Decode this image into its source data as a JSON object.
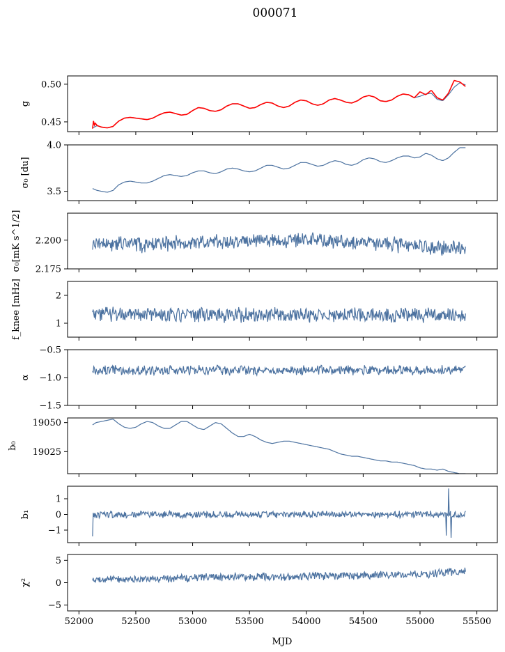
{
  "figure_title": "000071",
  "xlabel": "MJD",
  "x_ticks": [
    "52000",
    "52500",
    "53000",
    "53500",
    "54000",
    "54500",
    "55000",
    "55500"
  ],
  "colors": {
    "series": "#4c72a0",
    "highlight": "#ff0000"
  },
  "chart_data": [
    {
      "type": "line",
      "ylabel": "g",
      "xlim": [
        51900,
        55680
      ],
      "ylim": [
        0.437,
        0.511
      ],
      "yticks": [
        "0.50",
        "0.45"
      ],
      "series": [
        {
          "x": [
            52120,
            52160,
            52200,
            52250,
            52300,
            52350,
            52400,
            52450,
            52500,
            52550,
            52600,
            52650,
            52700,
            52750,
            52800,
            52850,
            52900,
            52950,
            53000,
            53050,
            53100,
            53150,
            53200,
            53250,
            53300,
            53350,
            53400,
            53450,
            53500,
            53550,
            53600,
            53650,
            53700,
            53750,
            53800,
            53850,
            53900,
            53950,
            54000,
            54050,
            54100,
            54150,
            54200,
            54250,
            54300,
            54350,
            54400,
            54450,
            54500,
            54550,
            54600,
            54650,
            54700,
            54750,
            54800,
            54850,
            54900,
            54950,
            55000,
            55050,
            55100,
            55150,
            55200,
            55250,
            55300,
            55350,
            55400
          ],
          "values": [
            0.442,
            0.445,
            0.443,
            0.442,
            0.444,
            0.451,
            0.455,
            0.456,
            0.455,
            0.454,
            0.453,
            0.455,
            0.459,
            0.462,
            0.463,
            0.461,
            0.459,
            0.46,
            0.465,
            0.469,
            0.468,
            0.465,
            0.464,
            0.466,
            0.471,
            0.474,
            0.474,
            0.471,
            0.468,
            0.469,
            0.473,
            0.476,
            0.475,
            0.471,
            0.469,
            0.471,
            0.476,
            0.479,
            0.478,
            0.474,
            0.472,
            0.474,
            0.479,
            0.481,
            0.479,
            0.476,
            0.475,
            0.478,
            0.483,
            0.485,
            0.483,
            0.478,
            0.477,
            0.479,
            0.484,
            0.487,
            0.486,
            0.482,
            0.484,
            0.487,
            0.488,
            0.48,
            0.478,
            0.486,
            0.496,
            0.502,
            0.499
          ]
        },
        {
          "x": [
            52120,
            52125,
            52130,
            52140,
            52160,
            52200,
            52250,
            52300,
            52350,
            52400,
            52450,
            52500,
            52550,
            52600,
            52650,
            52700,
            52750,
            52800,
            52850,
            52900,
            52950,
            53000,
            53050,
            53100,
            53150,
            53200,
            53250,
            53300,
            53350,
            53400,
            53450,
            53500,
            53550,
            53600,
            53650,
            53700,
            53750,
            53800,
            53850,
            53900,
            53950,
            54000,
            54050,
            54100,
            54150,
            54200,
            54250,
            54300,
            54350,
            54400,
            54450,
            54500,
            54550,
            54600,
            54650,
            54700,
            54750,
            54800,
            54850,
            54900,
            54950,
            55000,
            55050,
            55100,
            55150,
            55200,
            55250,
            55300,
            55350,
            55400
          ],
          "values": [
            0.441,
            0.471,
            0.44,
            0.449,
            0.445,
            0.443,
            0.442,
            0.444,
            0.451,
            0.455,
            0.456,
            0.455,
            0.454,
            0.453,
            0.455,
            0.459,
            0.462,
            0.463,
            0.461,
            0.459,
            0.46,
            0.465,
            0.469,
            0.468,
            0.465,
            0.464,
            0.466,
            0.471,
            0.474,
            0.474,
            0.471,
            0.468,
            0.469,
            0.473,
            0.476,
            0.475,
            0.471,
            0.469,
            0.471,
            0.476,
            0.479,
            0.478,
            0.474,
            0.472,
            0.474,
            0.479,
            0.481,
            0.479,
            0.476,
            0.475,
            0.478,
            0.483,
            0.485,
            0.483,
            0.478,
            0.477,
            0.479,
            0.484,
            0.487,
            0.486,
            0.482,
            0.49,
            0.486,
            0.492,
            0.482,
            0.479,
            0.488,
            0.505,
            0.503,
            0.497
          ]
        }
      ]
    },
    {
      "type": "line",
      "ylabel": "σ₀ [du]",
      "xlim": [
        51900,
        55680
      ],
      "ylim": [
        3.4,
        4.0
      ],
      "yticks": [
        "4.0",
        "3.5"
      ],
      "series": [
        {
          "x": [
            52120,
            52160,
            52200,
            52250,
            52300,
            52350,
            52400,
            52450,
            52500,
            52550,
            52600,
            52650,
            52700,
            52750,
            52800,
            52850,
            52900,
            52950,
            53000,
            53050,
            53100,
            53150,
            53200,
            53250,
            53300,
            53350,
            53400,
            53450,
            53500,
            53550,
            53600,
            53650,
            53700,
            53750,
            53800,
            53850,
            53900,
            53950,
            54000,
            54050,
            54100,
            54150,
            54200,
            54250,
            54300,
            54350,
            54400,
            54450,
            54500,
            54550,
            54600,
            54650,
            54700,
            54750,
            54800,
            54850,
            54900,
            54950,
            55000,
            55050,
            55100,
            55150,
            55200,
            55250,
            55300,
            55350,
            55400
          ],
          "values": [
            3.53,
            3.51,
            3.5,
            3.49,
            3.51,
            3.57,
            3.6,
            3.61,
            3.6,
            3.59,
            3.59,
            3.61,
            3.64,
            3.67,
            3.68,
            3.67,
            3.66,
            3.67,
            3.7,
            3.72,
            3.72,
            3.7,
            3.69,
            3.71,
            3.74,
            3.75,
            3.74,
            3.72,
            3.71,
            3.72,
            3.75,
            3.78,
            3.78,
            3.76,
            3.74,
            3.75,
            3.78,
            3.81,
            3.81,
            3.79,
            3.77,
            3.78,
            3.81,
            3.83,
            3.82,
            3.79,
            3.78,
            3.8,
            3.84,
            3.86,
            3.85,
            3.82,
            3.81,
            3.83,
            3.86,
            3.88,
            3.88,
            3.86,
            3.87,
            3.91,
            3.89,
            3.85,
            3.83,
            3.86,
            3.92,
            3.97,
            3.97
          ]
        }
      ]
    },
    {
      "type": "line",
      "ylabel": "σ₀[mK s^1/2]",
      "xlim": [
        51900,
        55680
      ],
      "ylim": [
        2.175,
        2.2235
      ],
      "yticks": [
        "2.200",
        "2.175"
      ],
      "series": [
        {
          "x": [
            52120,
            52600,
            53100,
            53600,
            54100,
            54600,
            55100,
            55400
          ],
          "values": [
            2.197,
            2.196,
            2.198,
            2.199,
            2.2,
            2.198,
            2.194,
            2.193
          ]
        }
      ]
    },
    {
      "type": "line",
      "ylabel": "f_knee [mHz]",
      "xlim": [
        51900,
        55680
      ],
      "ylim": [
        0.5,
        2.5
      ],
      "yticks": [
        "2",
        "1"
      ],
      "series": [
        {
          "x": [
            52120,
            55400
          ],
          "values": [
            1.3,
            1.3
          ]
        }
      ]
    },
    {
      "type": "line",
      "ylabel": "α",
      "xlim": [
        51900,
        55680
      ],
      "ylim": [
        -1.5,
        -0.5
      ],
      "yticks": [
        "−0.5",
        "−1.0",
        "−1.5"
      ],
      "series": [
        {
          "x": [
            52120,
            55400
          ],
          "values": [
            -0.87,
            -0.87
          ]
        }
      ]
    },
    {
      "type": "line",
      "ylabel": "b₀",
      "xlim": [
        51900,
        55680
      ],
      "ylim": [
        19006,
        19054
      ],
      "yticks": [
        "19050",
        "19025"
      ],
      "series": [
        {
          "x": [
            52120,
            52150,
            52200,
            52250,
            52300,
            52350,
            52400,
            52450,
            52500,
            52550,
            52600,
            52650,
            52700,
            52750,
            52800,
            52850,
            52900,
            52950,
            53000,
            53050,
            53100,
            53150,
            53200,
            53250,
            53300,
            53350,
            53400,
            53450,
            53500,
            53550,
            53600,
            53650,
            53700,
            53750,
            53800,
            53850,
            53900,
            53950,
            54000,
            54050,
            54100,
            54150,
            54200,
            54250,
            54300,
            54350,
            54400,
            54450,
            54500,
            54550,
            54600,
            54650,
            54700,
            54750,
            54800,
            54850,
            54900,
            54950,
            55000,
            55050,
            55100,
            55150,
            55200,
            55250,
            55300,
            55350,
            55400
          ],
          "values": [
            19048,
            19050,
            19051,
            19052,
            19053,
            19049,
            19046,
            19045,
            19046,
            19049,
            19051,
            19050,
            19047,
            19045,
            19045,
            19048,
            19051,
            19051,
            19048,
            19045,
            19044,
            19047,
            19050,
            19049,
            19045,
            19041,
            19038,
            19038,
            19040,
            19038,
            19035,
            19033,
            19032,
            19033,
            19034,
            19034,
            19033,
            19032,
            19031,
            19030,
            19029,
            19028,
            19027,
            19025,
            19023,
            19022,
            19021,
            19021,
            19020,
            19019,
            19018,
            19017,
            19017,
            19016,
            19016,
            19015,
            19014,
            19013,
            19011,
            19010,
            19010,
            19009,
            19010,
            19008,
            19007,
            19006,
            19006
          ]
        }
      ]
    },
    {
      "type": "line",
      "ylabel": "b₁",
      "xlim": [
        51900,
        55680
      ],
      "ylim": [
        -1.8,
        1.8
      ],
      "yticks": [
        "1",
        "0",
        "−1"
      ],
      "series": [
        {
          "x": [
            52120,
            55400
          ],
          "values": [
            0,
            0
          ]
        }
      ]
    },
    {
      "type": "line",
      "ylabel": "χ²",
      "xlim": [
        51900,
        55680
      ],
      "ylim": [
        -6.3,
        6.3
      ],
      "yticks": [
        "5",
        "0",
        "−5"
      ],
      "series": [
        {
          "x": [
            52120,
            52600,
            53100,
            53600,
            54100,
            54600,
            55100,
            55400
          ],
          "values": [
            0.6,
            0.8,
            1.1,
            1.3,
            1.5,
            1.7,
            2.0,
            2.6
          ]
        }
      ]
    }
  ]
}
